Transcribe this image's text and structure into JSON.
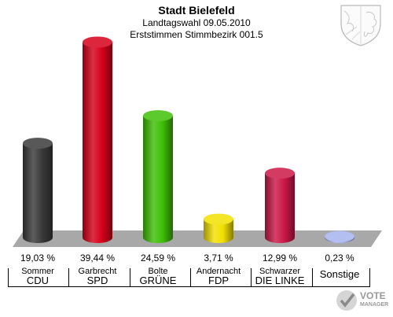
{
  "header": {
    "title": "Stadt Bielefeld",
    "subtitle": "Landtagswahl 09.05.2010",
    "district": "Erststimmen Stimmbezirk 001.5"
  },
  "logo": {
    "line1": "VOTE",
    "line2": "MANAGER"
  },
  "chart_data": {
    "type": "bar",
    "style": "3d-cylinder",
    "title": "Stadt Bielefeld",
    "subtitle": "Landtagswahl 09.05.2010 / Erststimmen Stimmbezirk 001.5",
    "unit": "%",
    "ylim": [
      0,
      40
    ],
    "grid": false,
    "legend": "none",
    "categories": [
      "CDU",
      "SPD",
      "GRÜNE",
      "FDP",
      "DIE LINKE",
      "Sonstige"
    ],
    "candidates": [
      "Sommer",
      "Garbrecht",
      "Bolte",
      "Andernacht",
      "Schwarzer",
      ""
    ],
    "values": [
      19.03,
      39.44,
      24.59,
      3.71,
      12.99,
      0.23
    ],
    "labels": [
      "19,03 %",
      "39,44 %",
      "24,59 %",
      "3,71 %",
      "12,99 %",
      "0,23 %"
    ],
    "colors": [
      "#3a3a3a",
      "#d6001a",
      "#3fbf08",
      "#f2e000",
      "#cc1848",
      "#a6b3ee"
    ]
  }
}
